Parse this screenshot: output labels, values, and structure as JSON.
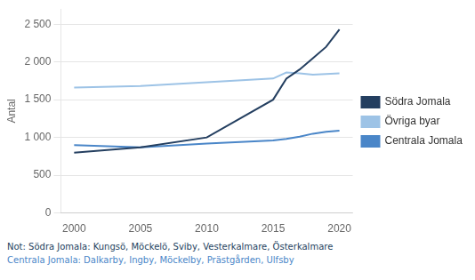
{
  "chart_data": {
    "type": "line",
    "ylabel": "Antal",
    "x": [
      2000,
      2005,
      2010,
      2015,
      2016,
      2017,
      2018,
      2019,
      2020
    ],
    "series": [
      {
        "name": "Södra Jomala",
        "color": "#243f60",
        "values": [
          800,
          870,
          1000,
          1500,
          1780,
          1900,
          2050,
          2200,
          2430
        ]
      },
      {
        "name": "Övriga byar",
        "color": "#9dc3e6",
        "values": [
          1660,
          1680,
          1730,
          1780,
          1860,
          1850,
          1830,
          1840,
          1850
        ]
      },
      {
        "name": "Centrala Jomala",
        "color": "#4a86c8",
        "values": [
          900,
          870,
          920,
          960,
          980,
          1010,
          1050,
          1075,
          1090
        ]
      }
    ],
    "xlim": [
      1999,
      2021
    ],
    "xticks": [
      2000,
      2005,
      2010,
      2015,
      2020
    ],
    "ylim": [
      0,
      2700
    ],
    "yticks": [
      0,
      500,
      {
        "value": 1000,
        "label": "1 000"
      },
      {
        "value": 1500,
        "label": "1 500"
      },
      {
        "value": 2000,
        "label": "2 000"
      },
      {
        "value": 2500,
        "label": "2 500"
      }
    ],
    "grid": "y",
    "legend": "right",
    "annotations": [
      {
        "text": "Not: Södra Jomala: Kungsö, Möckelö, Sviby, Vesterkalmare, Österkalmare",
        "color": "#243f60"
      },
      {
        "text": "Centrala Jomala: Dalkarby, Ingby, Möckelby, Prästgården, Ulfsby",
        "color": "#4a86c8"
      }
    ]
  }
}
